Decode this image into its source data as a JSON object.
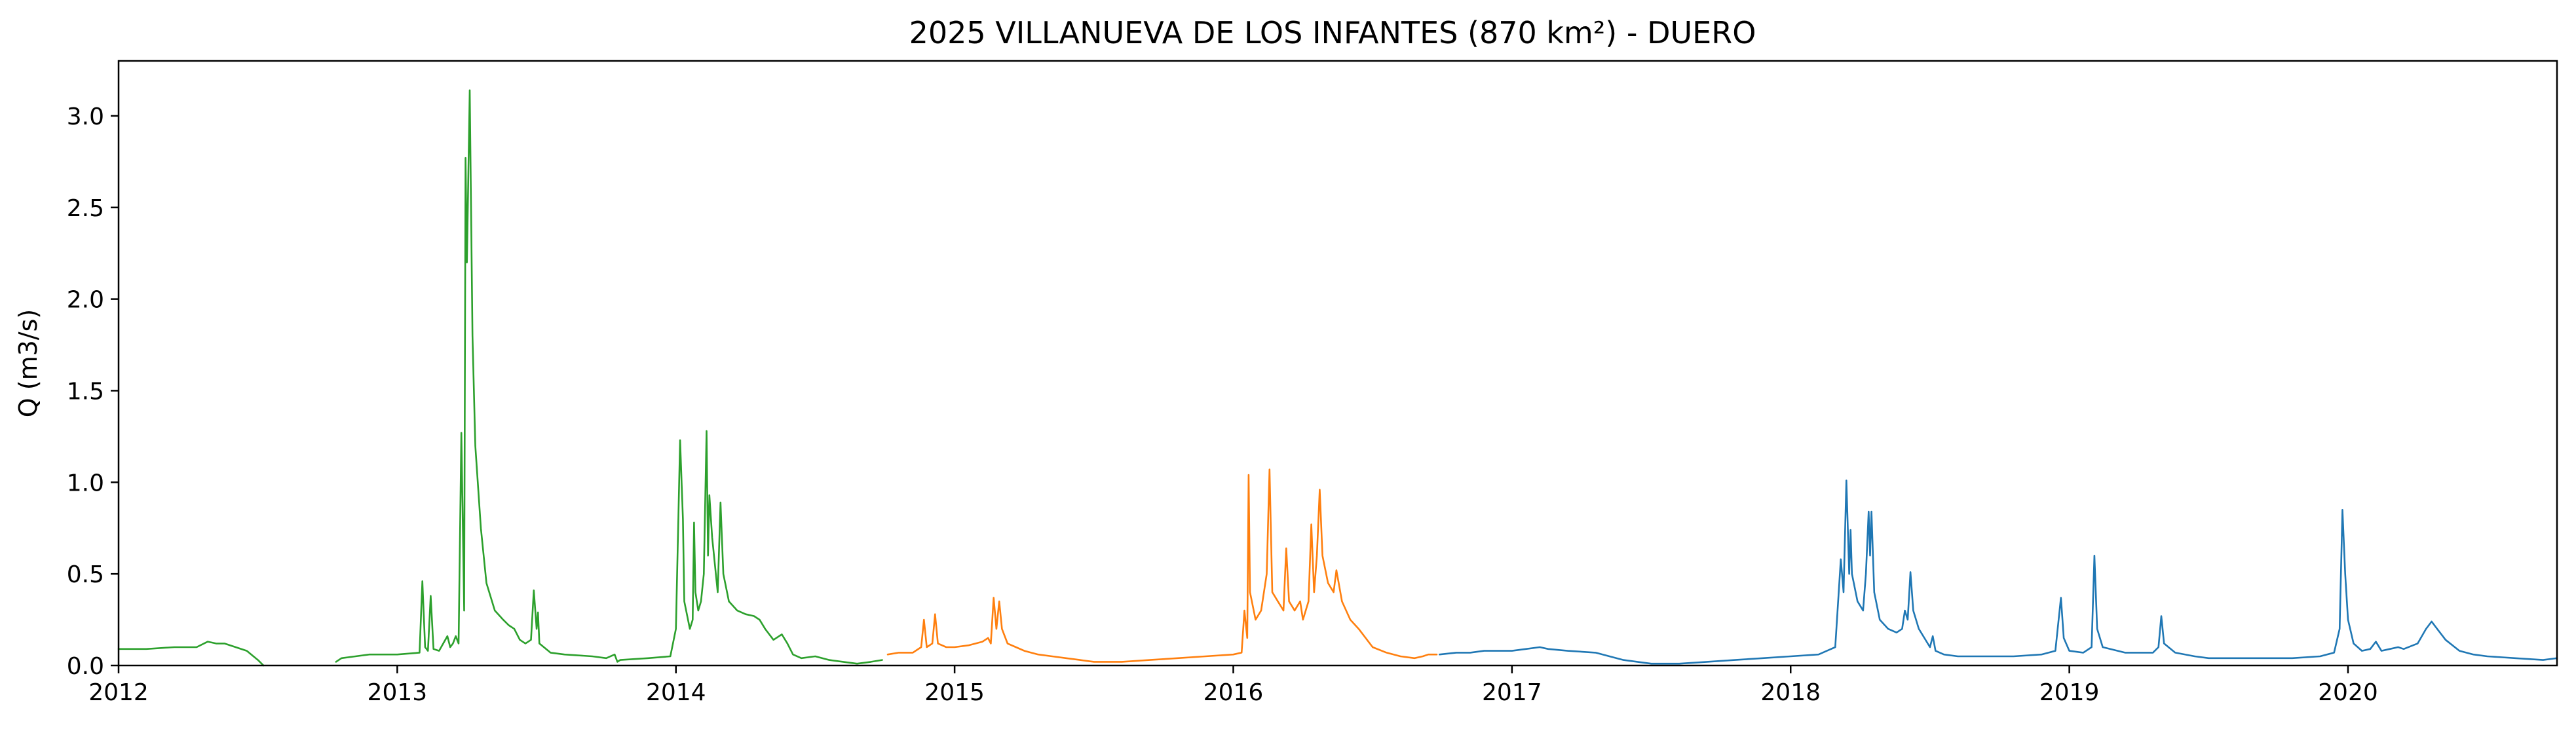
{
  "chart_data": {
    "type": "line",
    "title": "2025 VILLANUEVA DE LOS INFANTES (870 km²) - DUERO",
    "xlabel": "",
    "ylabel": "Q (m3/s)",
    "xlim": [
      2012.0,
      2020.75
    ],
    "ylim": [
      0.0,
      3.3
    ],
    "x_ticks": [
      2012,
      2013,
      2014,
      2015,
      2016,
      2017,
      2018,
      2019,
      2020
    ],
    "x_tick_labels": [
      "2012",
      "2013",
      "2014",
      "2015",
      "2016",
      "2017",
      "2018",
      "2019",
      "2020"
    ],
    "y_ticks": [
      0.0,
      0.5,
      1.0,
      1.5,
      2.0,
      2.5,
      3.0
    ],
    "y_tick_labels": [
      "0.0",
      "0.5",
      "1.0",
      "1.5",
      "2.0",
      "2.5",
      "3.0"
    ],
    "grid": false,
    "legend": "none",
    "series": [
      {
        "color": "#2ca02c",
        "segments": [
          [
            [
              2012.0,
              0.09
            ],
            [
              2012.1,
              0.09
            ],
            [
              2012.2,
              0.1
            ],
            [
              2012.28,
              0.1
            ],
            [
              2012.32,
              0.13
            ],
            [
              2012.35,
              0.12
            ],
            [
              2012.38,
              0.12
            ],
            [
              2012.42,
              0.1
            ],
            [
              2012.46,
              0.08
            ],
            [
              2012.5,
              0.03
            ],
            [
              2012.52,
              0.0
            ]
          ],
          [
            [
              2012.78,
              0.02
            ],
            [
              2012.8,
              0.04
            ],
            [
              2012.85,
              0.05
            ],
            [
              2012.9,
              0.06
            ],
            [
              2013.0,
              0.06
            ],
            [
              2013.08,
              0.07
            ],
            [
              2013.09,
              0.46
            ],
            [
              2013.1,
              0.1
            ],
            [
              2013.11,
              0.08
            ],
            [
              2013.12,
              0.38
            ],
            [
              2013.13,
              0.09
            ],
            [
              2013.15,
              0.08
            ],
            [
              2013.18,
              0.16
            ],
            [
              2013.19,
              0.1
            ],
            [
              2013.2,
              0.12
            ],
            [
              2013.21,
              0.16
            ],
            [
              2013.22,
              0.12
            ],
            [
              2013.23,
              1.27
            ],
            [
              2013.24,
              0.3
            ],
            [
              2013.245,
              2.77
            ],
            [
              2013.25,
              2.2
            ],
            [
              2013.26,
              3.14
            ],
            [
              2013.27,
              1.8
            ],
            [
              2013.28,
              1.2
            ],
            [
              2013.3,
              0.75
            ],
            [
              2013.32,
              0.45
            ],
            [
              2013.35,
              0.3
            ],
            [
              2013.38,
              0.25
            ],
            [
              2013.4,
              0.22
            ],
            [
              2013.42,
              0.2
            ],
            [
              2013.44,
              0.14
            ],
            [
              2013.46,
              0.12
            ],
            [
              2013.48,
              0.14
            ],
            [
              2013.49,
              0.41
            ],
            [
              2013.5,
              0.2
            ],
            [
              2013.505,
              0.29
            ],
            [
              2013.51,
              0.12
            ],
            [
              2013.55,
              0.07
            ],
            [
              2013.6,
              0.06
            ],
            [
              2013.7,
              0.05
            ],
            [
              2013.75,
              0.04
            ],
            [
              2013.78,
              0.06
            ],
            [
              2013.79,
              0.02
            ],
            [
              2013.8,
              0.03
            ],
            [
              2013.9,
              0.04
            ],
            [
              2013.98,
              0.05
            ],
            [
              2014.0,
              0.2
            ],
            [
              2014.015,
              1.23
            ],
            [
              2014.025,
              0.8
            ],
            [
              2014.03,
              0.35
            ],
            [
              2014.05,
              0.2
            ],
            [
              2014.06,
              0.25
            ],
            [
              2014.065,
              0.78
            ],
            [
              2014.07,
              0.4
            ],
            [
              2014.08,
              0.3
            ],
            [
              2014.09,
              0.35
            ],
            [
              2014.1,
              0.5
            ],
            [
              2014.11,
              1.28
            ],
            [
              2014.115,
              0.6
            ],
            [
              2014.12,
              0.93
            ],
            [
              2014.13,
              0.7
            ],
            [
              2014.15,
              0.4
            ],
            [
              2014.16,
              0.89
            ],
            [
              2014.17,
              0.5
            ],
            [
              2014.19,
              0.35
            ],
            [
              2014.22,
              0.3
            ],
            [
              2014.25,
              0.28
            ],
            [
              2014.28,
              0.27
            ],
            [
              2014.3,
              0.25
            ],
            [
              2014.32,
              0.2
            ],
            [
              2014.35,
              0.14
            ],
            [
              2014.38,
              0.17
            ],
            [
              2014.4,
              0.12
            ],
            [
              2014.42,
              0.06
            ],
            [
              2014.45,
              0.04
            ],
            [
              2014.5,
              0.05
            ],
            [
              2014.55,
              0.03
            ],
            [
              2014.6,
              0.02
            ],
            [
              2014.65,
              0.01
            ],
            [
              2014.7,
              0.02
            ],
            [
              2014.74,
              0.03
            ]
          ]
        ]
      },
      {
        "color": "#ff7f0e",
        "segments": [
          [
            [
              2014.76,
              0.06
            ],
            [
              2014.8,
              0.07
            ],
            [
              2014.85,
              0.07
            ],
            [
              2014.88,
              0.1
            ],
            [
              2014.89,
              0.25
            ],
            [
              2014.9,
              0.1
            ],
            [
              2014.92,
              0.12
            ],
            [
              2014.93,
              0.28
            ],
            [
              2014.94,
              0.12
            ],
            [
              2014.97,
              0.1
            ],
            [
              2015.0,
              0.1
            ],
            [
              2015.05,
              0.11
            ],
            [
              2015.1,
              0.13
            ],
            [
              2015.12,
              0.15
            ],
            [
              2015.13,
              0.12
            ],
            [
              2015.14,
              0.37
            ],
            [
              2015.15,
              0.2
            ],
            [
              2015.16,
              0.35
            ],
            [
              2015.17,
              0.2
            ],
            [
              2015.19,
              0.12
            ],
            [
              2015.22,
              0.1
            ],
            [
              2015.25,
              0.08
            ],
            [
              2015.3,
              0.06
            ],
            [
              2015.35,
              0.05
            ],
            [
              2015.4,
              0.04
            ],
            [
              2015.45,
              0.03
            ],
            [
              2015.5,
              0.02
            ],
            [
              2015.6,
              0.02
            ],
            [
              2015.7,
              0.03
            ],
            [
              2015.8,
              0.04
            ],
            [
              2015.9,
              0.05
            ],
            [
              2016.0,
              0.06
            ],
            [
              2016.03,
              0.07
            ],
            [
              2016.04,
              0.3
            ],
            [
              2016.05,
              0.15
            ],
            [
              2016.055,
              1.04
            ],
            [
              2016.06,
              0.4
            ],
            [
              2016.08,
              0.25
            ],
            [
              2016.1,
              0.3
            ],
            [
              2016.12,
              0.5
            ],
            [
              2016.13,
              1.07
            ],
            [
              2016.14,
              0.4
            ],
            [
              2016.16,
              0.35
            ],
            [
              2016.18,
              0.3
            ],
            [
              2016.19,
              0.64
            ],
            [
              2016.2,
              0.35
            ],
            [
              2016.22,
              0.3
            ],
            [
              2016.24,
              0.35
            ],
            [
              2016.25,
              0.25
            ],
            [
              2016.27,
              0.35
            ],
            [
              2016.28,
              0.77
            ],
            [
              2016.29,
              0.4
            ],
            [
              2016.3,
              0.6
            ],
            [
              2016.31,
              0.96
            ],
            [
              2016.32,
              0.6
            ],
            [
              2016.34,
              0.45
            ],
            [
              2016.36,
              0.4
            ],
            [
              2016.37,
              0.52
            ],
            [
              2016.39,
              0.35
            ],
            [
              2016.42,
              0.25
            ],
            [
              2016.45,
              0.2
            ],
            [
              2016.5,
              0.1
            ],
            [
              2016.55,
              0.07
            ],
            [
              2016.6,
              0.05
            ],
            [
              2016.65,
              0.04
            ],
            [
              2016.68,
              0.05
            ],
            [
              2016.7,
              0.06
            ],
            [
              2016.73,
              0.06
            ]
          ]
        ]
      },
      {
        "color": "#1f77b4",
        "segments": [
          [
            [
              2016.74,
              0.06
            ],
            [
              2016.8,
              0.07
            ],
            [
              2016.85,
              0.07
            ],
            [
              2016.9,
              0.08
            ],
            [
              2017.0,
              0.08
            ],
            [
              2017.05,
              0.09
            ],
            [
              2017.1,
              0.1
            ],
            [
              2017.13,
              0.09
            ],
            [
              2017.2,
              0.08
            ],
            [
              2017.3,
              0.07
            ],
            [
              2017.35,
              0.05
            ],
            [
              2017.4,
              0.03
            ],
            [
              2017.45,
              0.02
            ],
            [
              2017.5,
              0.01
            ],
            [
              2017.6,
              0.01
            ],
            [
              2017.7,
              0.02
            ],
            [
              2017.8,
              0.03
            ],
            [
              2017.9,
              0.04
            ],
            [
              2018.0,
              0.05
            ],
            [
              2018.1,
              0.06
            ],
            [
              2018.16,
              0.1
            ],
            [
              2018.18,
              0.58
            ],
            [
              2018.19,
              0.4
            ],
            [
              2018.2,
              1.01
            ],
            [
              2018.21,
              0.5
            ],
            [
              2018.215,
              0.74
            ],
            [
              2018.22,
              0.5
            ],
            [
              2018.24,
              0.35
            ],
            [
              2018.26,
              0.3
            ],
            [
              2018.27,
              0.5
            ],
            [
              2018.28,
              0.84
            ],
            [
              2018.285,
              0.6
            ],
            [
              2018.29,
              0.84
            ],
            [
              2018.3,
              0.4
            ],
            [
              2018.32,
              0.25
            ],
            [
              2018.35,
              0.2
            ],
            [
              2018.38,
              0.18
            ],
            [
              2018.4,
              0.2
            ],
            [
              2018.41,
              0.3
            ],
            [
              2018.42,
              0.25
            ],
            [
              2018.43,
              0.51
            ],
            [
              2018.44,
              0.3
            ],
            [
              2018.46,
              0.2
            ],
            [
              2018.48,
              0.15
            ],
            [
              2018.5,
              0.1
            ],
            [
              2018.51,
              0.16
            ],
            [
              2018.52,
              0.08
            ],
            [
              2018.55,
              0.06
            ],
            [
              2018.6,
              0.05
            ],
            [
              2018.7,
              0.05
            ],
            [
              2018.8,
              0.05
            ],
            [
              2018.9,
              0.06
            ],
            [
              2018.95,
              0.08
            ],
            [
              2018.97,
              0.37
            ],
            [
              2018.98,
              0.15
            ],
            [
              2019.0,
              0.08
            ],
            [
              2019.05,
              0.07
            ],
            [
              2019.08,
              0.1
            ],
            [
              2019.09,
              0.6
            ],
            [
              2019.1,
              0.2
            ],
            [
              2019.12,
              0.1
            ],
            [
              2019.2,
              0.07
            ],
            [
              2019.3,
              0.07
            ],
            [
              2019.32,
              0.1
            ],
            [
              2019.33,
              0.27
            ],
            [
              2019.34,
              0.12
            ],
            [
              2019.38,
              0.07
            ],
            [
              2019.45,
              0.05
            ],
            [
              2019.5,
              0.04
            ],
            [
              2019.6,
              0.04
            ],
            [
              2019.7,
              0.04
            ],
            [
              2019.8,
              0.04
            ],
            [
              2019.9,
              0.05
            ],
            [
              2019.95,
              0.07
            ],
            [
              2019.97,
              0.2
            ],
            [
              2019.98,
              0.85
            ],
            [
              2019.99,
              0.5
            ],
            [
              2020.0,
              0.25
            ],
            [
              2020.02,
              0.12
            ],
            [
              2020.05,
              0.08
            ],
            [
              2020.08,
              0.09
            ],
            [
              2020.1,
              0.13
            ],
            [
              2020.12,
              0.08
            ],
            [
              2020.15,
              0.09
            ],
            [
              2020.18,
              0.1
            ],
            [
              2020.2,
              0.09
            ],
            [
              2020.25,
              0.12
            ],
            [
              2020.28,
              0.2
            ],
            [
              2020.3,
              0.24
            ],
            [
              2020.32,
              0.2
            ],
            [
              2020.35,
              0.14
            ],
            [
              2020.4,
              0.08
            ],
            [
              2020.45,
              0.06
            ],
            [
              2020.5,
              0.05
            ],
            [
              2020.6,
              0.04
            ],
            [
              2020.7,
              0.03
            ],
            [
              2020.75,
              0.04
            ]
          ]
        ]
      }
    ]
  }
}
